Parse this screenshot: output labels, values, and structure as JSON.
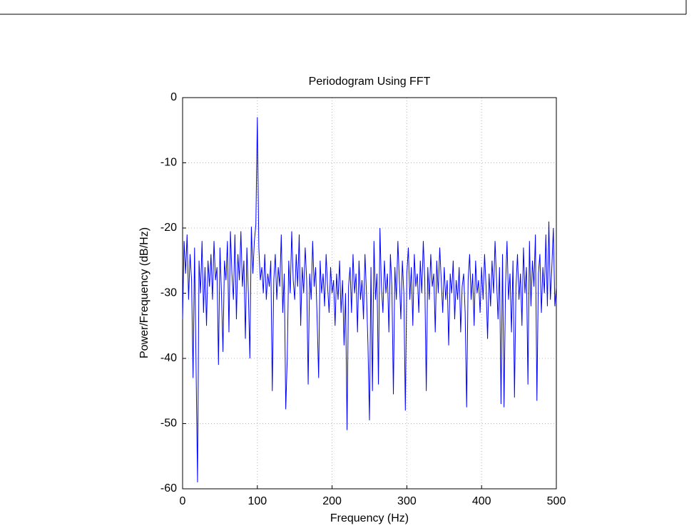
{
  "chart_data": {
    "type": "line",
    "title": "Periodogram Using FFT",
    "x_label": "Frequency (Hz)",
    "y_label": "Power/Frequency (dB/Hz)",
    "x": [
      0,
      2,
      4,
      6,
      8,
      10,
      12,
      14,
      16,
      18,
      20,
      22,
      24,
      26,
      28,
      30,
      32,
      34,
      36,
      38,
      40,
      42,
      44,
      46,
      48,
      50,
      52,
      54,
      56,
      58,
      60,
      62,
      64,
      66,
      68,
      70,
      72,
      74,
      76,
      78,
      80,
      82,
      84,
      86,
      88,
      90,
      92,
      94,
      96,
      98,
      100,
      102,
      104,
      106,
      108,
      110,
      112,
      114,
      116,
      118,
      120,
      122,
      124,
      126,
      128,
      130,
      132,
      134,
      136,
      138,
      140,
      142,
      144,
      146,
      148,
      150,
      152,
      154,
      156,
      158,
      160,
      162,
      164,
      166,
      168,
      170,
      172,
      174,
      176,
      178,
      180,
      182,
      184,
      186,
      188,
      190,
      192,
      194,
      196,
      198,
      200,
      202,
      204,
      206,
      208,
      210,
      212,
      214,
      216,
      218,
      220,
      222,
      224,
      226,
      228,
      230,
      232,
      234,
      236,
      238,
      240,
      242,
      244,
      246,
      248,
      250,
      252,
      254,
      256,
      258,
      260,
      262,
      264,
      266,
      268,
      270,
      272,
      274,
      276,
      278,
      280,
      282,
      284,
      286,
      288,
      290,
      292,
      294,
      296,
      298,
      300,
      302,
      304,
      306,
      308,
      310,
      312,
      314,
      316,
      318,
      320,
      322,
      324,
      326,
      328,
      330,
      332,
      334,
      336,
      338,
      340,
      342,
      344,
      346,
      348,
      350,
      352,
      354,
      356,
      358,
      360,
      362,
      364,
      366,
      368,
      370,
      372,
      374,
      376,
      378,
      380,
      382,
      384,
      386,
      388,
      390,
      392,
      394,
      396,
      398,
      400,
      402,
      404,
      406,
      408,
      410,
      412,
      414,
      416,
      418,
      420,
      422,
      424,
      426,
      428,
      430,
      432,
      434,
      436,
      438,
      440,
      442,
      444,
      446,
      448,
      450,
      452,
      454,
      456,
      458,
      460,
      462,
      464,
      466,
      468,
      470,
      472,
      474,
      476,
      478,
      480,
      482,
      484,
      486,
      488,
      490,
      492,
      494,
      496,
      498,
      500
    ],
    "series": [
      {
        "color": "#0000ff",
        "values": [
          -34,
          -22,
          -27,
          -21,
          -31,
          -24,
          -28,
          -43,
          -23,
          -41,
          -59,
          -25,
          -30,
          -22,
          -33,
          -26,
          -35,
          -25,
          -29,
          -24,
          -31,
          -22,
          -28,
          -26,
          -41,
          -23,
          -30,
          -39,
          -25,
          -28,
          -22,
          -36,
          -20.5,
          -27,
          -31,
          -21,
          -34,
          -24,
          -28,
          -20.5,
          -29,
          -25,
          -37,
          -23,
          -30,
          -40,
          -19.8,
          -27,
          -22,
          -19.5,
          -3,
          -23,
          -28,
          -26,
          -30,
          -24,
          -31,
          -27,
          -29,
          -25,
          -45,
          -28,
          -24,
          -31,
          -26,
          -29,
          -21,
          -33,
          -27,
          -47.8,
          -40,
          -25,
          -30,
          -20.5,
          -28,
          -31,
          -24,
          -29,
          -21,
          -35,
          -26,
          -30,
          -23,
          -28,
          -44,
          -27,
          -31,
          -22,
          -29,
          -26,
          -34,
          -43,
          -25,
          -30,
          -27,
          -32,
          -24,
          -29,
          -33,
          -26,
          -30,
          -28,
          -35,
          -27,
          -31,
          -25,
          -33,
          -28,
          -38,
          -30,
          -51,
          -29,
          -26,
          -33,
          -24,
          -30,
          -27,
          -36,
          -25,
          -31,
          -28,
          -34,
          -24,
          -30,
          -38,
          -49.5,
          -26,
          -45,
          -22,
          -31,
          -27,
          -44,
          -20,
          -29,
          -33,
          -25,
          -30,
          -27,
          -36,
          -24,
          -29,
          -45.5,
          -26,
          -31,
          -22,
          -28,
          -34,
          -25,
          -30,
          -48,
          -27,
          -23,
          -31,
          -26,
          -35,
          -24,
          -29,
          -27,
          -33,
          -25,
          -30,
          -22,
          -28,
          -45,
          -26,
          -31,
          -24,
          -29,
          -27,
          -36,
          -25,
          -30,
          -23,
          -28,
          -33,
          -26,
          -31,
          -28,
          -38,
          -27,
          -30,
          -25,
          -34,
          -28,
          -31,
          -26,
          -36,
          -29,
          -27,
          -33,
          -47.5,
          -28,
          -24,
          -31,
          -27,
          -35,
          -25,
          -30,
          -28,
          -33,
          -26,
          -31,
          -24,
          -29,
          -37,
          -27,
          -32,
          -25,
          -30,
          -22,
          -28,
          -34,
          -26,
          -47,
          -24,
          -47.5,
          -29,
          -22,
          -31,
          -27,
          -36,
          -25,
          -46,
          -29,
          -24,
          -31,
          -27,
          -35,
          -23,
          -30,
          -26,
          -44,
          -22,
          -32,
          -25,
          -29,
          -21,
          -46.5,
          -27,
          -24,
          -33,
          -26,
          -30,
          -21,
          -32,
          -19,
          -31,
          -26,
          -20,
          -32,
          -29
        ]
      }
    ],
    "xlim": [
      0,
      500
    ],
    "ylim": [
      -60,
      0
    ],
    "xticks": [
      0,
      100,
      200,
      300,
      400,
      500
    ],
    "yticks": [
      -60,
      -50,
      -40,
      -30,
      -20,
      -10,
      0
    ],
    "grid": true
  }
}
